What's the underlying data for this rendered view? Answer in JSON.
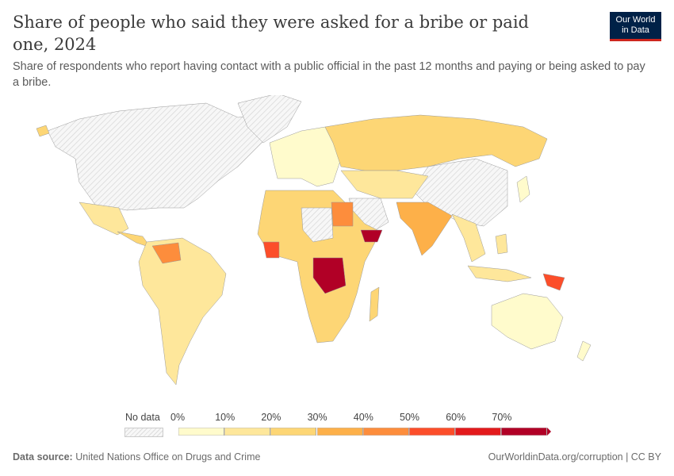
{
  "header": {
    "title": "Share of people who said they were asked for a bribe or paid one, 2024",
    "subtitle": "Share of respondents who report having contact with a public official in the past 12 months and paying or being asked to pay a bribe.",
    "logo": "Our World in Data"
  },
  "legend": {
    "no_data_label": "No data",
    "bins": [
      {
        "label": "0%",
        "color": "#fffbcc"
      },
      {
        "label": "10%",
        "color": "#fee79b"
      },
      {
        "label": "20%",
        "color": "#fdd675"
      },
      {
        "label": "30%",
        "color": "#fdb049"
      },
      {
        "label": "40%",
        "color": "#fd8d3c"
      },
      {
        "label": "50%",
        "color": "#fc4e2a"
      },
      {
        "label": "60%",
        "color": "#e31a1c"
      },
      {
        "label": "70%",
        "color": "#b10026"
      }
    ]
  },
  "footer": {
    "source_label": "Data source:",
    "source": "United Nations Office on Drugs and Crime",
    "link": "OurWorldinData.org/corruption | CC BY"
  }
}
